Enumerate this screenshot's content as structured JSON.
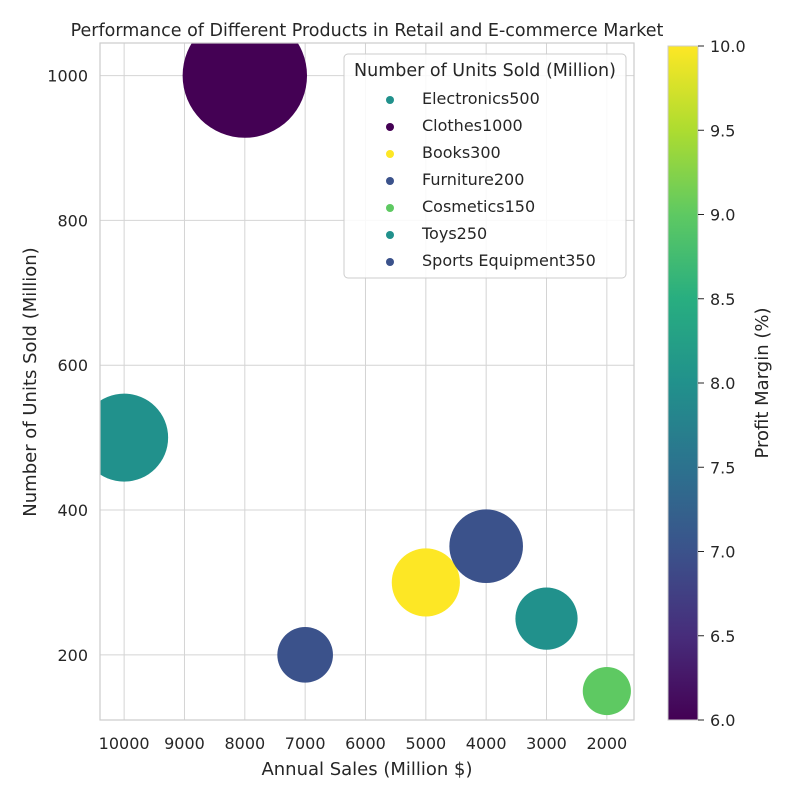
{
  "chart_data": {
    "type": "scatter",
    "title": "Performance of Different Products in Retail and E-commerce Market",
    "xlabel": "Annual Sales (Million $)",
    "ylabel": "Number of Units Sold (Million)",
    "xlim": [
      10400,
      1550
    ],
    "ylim": [
      110,
      1045
    ],
    "x_ticks": [
      10000,
      9000,
      8000,
      7000,
      6000,
      5000,
      4000,
      3000,
      2000
    ],
    "y_ticks": [
      200,
      400,
      600,
      800,
      1000
    ],
    "grid": true,
    "legend": {
      "title": "Number of Units Sold (Million)",
      "placement": "top-right"
    },
    "colorbar": {
      "label": "Profit Margin (%)",
      "range": [
        6.0,
        10.0
      ],
      "ticks": [
        "6.0",
        "6.5",
        "7.0",
        "7.5",
        "8.0",
        "8.5",
        "9.0",
        "9.5",
        "10.0"
      ],
      "colormap": "viridis"
    },
    "points": [
      {
        "label": "Electronics500",
        "x": 10000,
        "y": 500,
        "profit_margin": 7.8,
        "size": 500,
        "color": "#21918c"
      },
      {
        "label": "Clothes1000",
        "x": 8000,
        "y": 1000,
        "profit_margin": 6.0,
        "size": 1000,
        "color": "#440154"
      },
      {
        "label": "Books300",
        "x": 5000,
        "y": 300,
        "profit_margin": 10.0,
        "size": 300,
        "color": "#fde725"
      },
      {
        "label": "Furniture200",
        "x": 7000,
        "y": 200,
        "profit_margin": 7.0,
        "size": 200,
        "color": "#3b528b"
      },
      {
        "label": "Cosmetics150",
        "x": 2000,
        "y": 150,
        "profit_margin": 9.1,
        "size": 150,
        "color": "#5ec962"
      },
      {
        "label": "Toys250",
        "x": 3000,
        "y": 250,
        "profit_margin": 7.8,
        "size": 250,
        "color": "#21918c"
      },
      {
        "label": "Sports Equipment350",
        "x": 4000,
        "y": 350,
        "profit_margin": 7.0,
        "size": 350,
        "color": "#3b528b"
      }
    ]
  }
}
